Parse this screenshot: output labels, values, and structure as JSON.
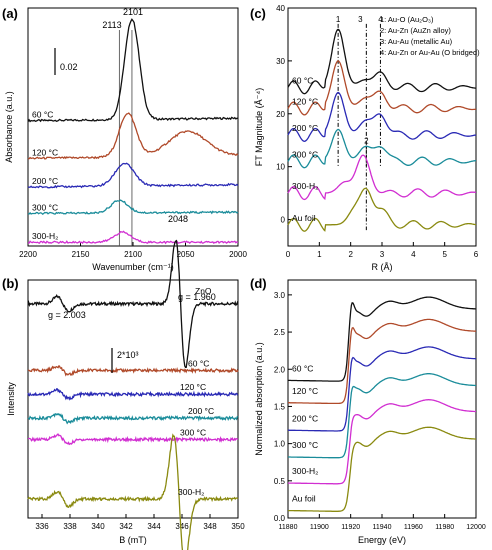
{
  "chart_data": [
    {
      "panel": "(a)",
      "type": "line",
      "xlabel": "Wavenumber (cm⁻¹)",
      "ylabel": "Absorbance (a.u.)",
      "xlim": [
        2200,
        2000
      ],
      "x_ticks": [
        "2200",
        "2150",
        "2100",
        "2050",
        "2000"
      ],
      "scale_bar": "0.02",
      "annotations": [
        "2113",
        "2101",
        "2048"
      ],
      "vlines": [
        2113,
        2101
      ],
      "series": [
        {
          "name": "60 °C",
          "color": "#111111",
          "offset": 1.0,
          "peaks": [
            [
              2101,
              0.8,
              7
            ]
          ],
          "slope": 0.02
        },
        {
          "name": "120 °C",
          "color": "#b04a2a",
          "offset": 0.7,
          "peaks": [
            [
              2105,
              0.35,
              8
            ],
            [
              2048,
              0.2,
              18
            ]
          ],
          "slope": 0.02
        },
        {
          "name": "200 °C",
          "color": "#2a2ab5",
          "offset": 0.47,
          "peaks": [
            [
              2108,
              0.18,
              9
            ]
          ],
          "slope": 0.02
        },
        {
          "name": "300 °C",
          "color": "#1a8c9a",
          "offset": 0.26,
          "peaks": [
            [
              2113,
              0.1,
              8
            ]
          ],
          "slope": 0.01
        },
        {
          "name": "300-H₂",
          "color": "#d12fd1",
          "offset": 0.03,
          "peaks": [
            [
              2110,
              0.08,
              8
            ]
          ],
          "slope": 0.0
        }
      ]
    },
    {
      "panel": "(b)",
      "type": "line",
      "xlabel": "B (mT)",
      "ylabel": "Intensity",
      "xlim": [
        335,
        350
      ],
      "x_ticks": [
        "336",
        "338",
        "340",
        "342",
        "344",
        "346",
        "348",
        "350"
      ],
      "scale_bar": "2*10³",
      "annotations": [
        "g = 2.003",
        "g = 1.960"
      ],
      "series": [
        {
          "name": "ZnO",
          "color": "#111111",
          "offset": 0.9,
          "deriv": [
            [
              345.9,
              0.55,
              0.35
            ]
          ],
          "small": 0.05
        },
        {
          "name": "60 °C",
          "color": "#b04a2a",
          "offset": 0.62,
          "deriv": [],
          "small": 0.03
        },
        {
          "name": "120 °C",
          "color": "#2a2ab5",
          "offset": 0.52,
          "deriv": [],
          "small": 0.03
        },
        {
          "name": "200 °C",
          "color": "#1a8c9a",
          "offset": 0.42,
          "deriv": [],
          "small": 0.03
        },
        {
          "name": "300 °C",
          "color": "#d12fd1",
          "offset": 0.33,
          "deriv": [],
          "small": 0.03
        },
        {
          "name": "300-H₂",
          "color": "#8a8a10",
          "offset": 0.08,
          "deriv": [
            [
              345.8,
              0.55,
              0.4
            ]
          ],
          "small": 0.05
        }
      ]
    },
    {
      "panel": "(c)",
      "type": "line",
      "xlabel": "R (Å)",
      "ylabel": "FT Magnitude (Å⁻⁴)",
      "xlim": [
        0,
        6
      ],
      "ylim": [
        -5,
        40
      ],
      "x_ticks": [
        "0",
        "1",
        "2",
        "3",
        "4",
        "5",
        "6"
      ],
      "y_ticks": [
        "0",
        "10",
        "20",
        "30",
        "40"
      ],
      "legend": [
        "1: Au-O (Au₂O₃)",
        "2: Au-Zn (AuZn alloy)",
        "3: Au-Au (metallic Au)",
        "4: Au-Zn or Au-Au (O bridged)"
      ],
      "marker_labels": [
        "1",
        "2",
        "3",
        "4"
      ],
      "markers": [
        1.6,
        2.5,
        2.5,
        2.95
      ],
      "series": [
        {
          "name": "60 °C",
          "color": "#111111",
          "offset": 25,
          "peaks": [
            [
              1.6,
              11,
              0.2
            ],
            [
              2.95,
              2.5,
              0.2
            ],
            [
              2.45,
              1.5,
              0.2
            ]
          ]
        },
        {
          "name": "120 °C",
          "color": "#b04a2a",
          "offset": 21,
          "peaks": [
            [
              1.6,
              9,
              0.2
            ],
            [
              2.95,
              3,
              0.2
            ],
            [
              2.45,
              2,
              0.2
            ]
          ]
        },
        {
          "name": "200 °C",
          "color": "#2a2ab5",
          "offset": 16,
          "peaks": [
            [
              1.6,
              8,
              0.2
            ],
            [
              2.95,
              4,
              0.2
            ],
            [
              2.45,
              2.5,
              0.2
            ]
          ]
        },
        {
          "name": "300 °C",
          "color": "#1a8c9a",
          "offset": 11,
          "peaks": [
            [
              1.6,
              6,
              0.2
            ],
            [
              2.95,
              3,
              0.2
            ],
            [
              2.45,
              2.5,
              0.2
            ]
          ]
        },
        {
          "name": "300-H₂",
          "color": "#d12fd1",
          "offset": 5,
          "peaks": [
            [
              2.4,
              7,
              0.22
            ],
            [
              1.8,
              2,
              0.2
            ]
          ]
        },
        {
          "name": "Au foil",
          "color": "#8a8a10",
          "offset": -1,
          "peaks": [
            [
              2.5,
              6.5,
              0.2
            ],
            [
              2.1,
              2.5,
              0.2
            ],
            [
              3.0,
              2.5,
              0.2
            ]
          ]
        }
      ]
    },
    {
      "panel": "(d)",
      "type": "line",
      "xlabel": "Energy (eV)",
      "ylabel": "Normalized absorption (a.u.)",
      "xlim": [
        11880,
        12000
      ],
      "ylim": [
        0.0,
        3.2
      ],
      "x_ticks": [
        "11880",
        "11900",
        "11920",
        "11940",
        "11960",
        "11980",
        "12000"
      ],
      "y_ticks": [
        "0.0",
        "0.5",
        "1.0",
        "1.5",
        "2.0",
        "2.5",
        "3.0"
      ],
      "series": [
        {
          "name": "60 °C",
          "color": "#111111",
          "offset": 1.85,
          "white": 0.45
        },
        {
          "name": "120 °C",
          "color": "#b04a2a",
          "offset": 1.55,
          "white": 0.4
        },
        {
          "name": "200 °C",
          "color": "#2a2ab5",
          "offset": 1.18,
          "white": 0.35
        },
        {
          "name": "300 °C",
          "color": "#1a8c9a",
          "offset": 0.82,
          "white": 0.3
        },
        {
          "name": "300-H₂",
          "color": "#d12fd1",
          "offset": 0.47,
          "white": 0.18
        },
        {
          "name": "Au foil",
          "color": "#8a8a10",
          "offset": 0.1,
          "white": 0.1
        }
      ]
    }
  ]
}
